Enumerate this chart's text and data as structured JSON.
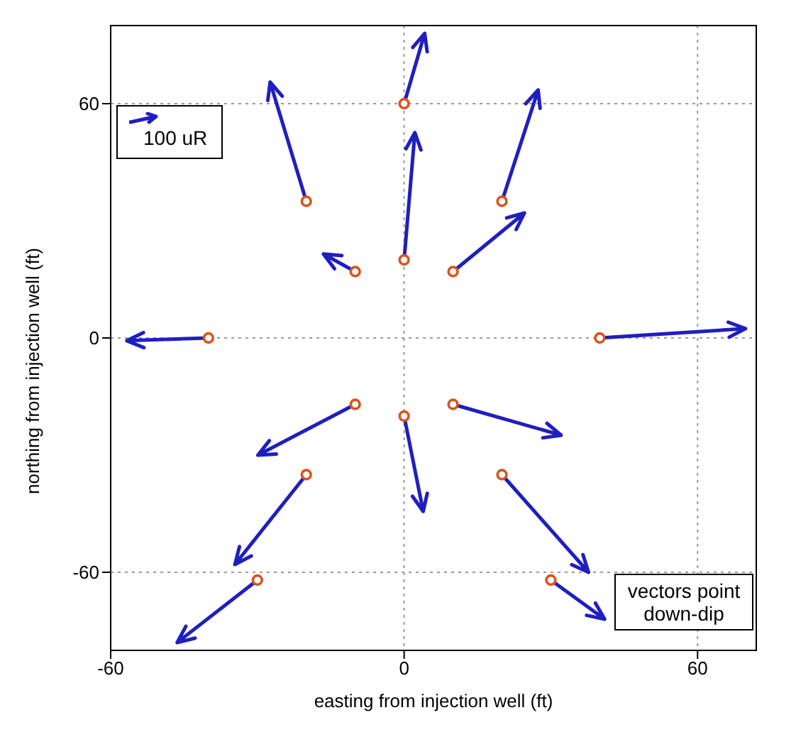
{
  "chart_data": {
    "type": "line",
    "xlabel": "easting from injection well (ft)",
    "ylabel": "northing from injection well (ft)",
    "xlim": [
      -60,
      72
    ],
    "ylim": [
      -80,
      80
    ],
    "xticks": [
      -60,
      0,
      60
    ],
    "yticks": [
      -60,
      0,
      60
    ],
    "grid": true,
    "line_style": "solid",
    "annotations": [
      "100 uR",
      "vectors point down-dip"
    ],
    "series": [
      {
        "color": "#1f1fbf",
        "marker": "none",
        "x": [
          0,
          4.2
        ],
        "values": [
          60,
          78
        ]
      },
      {
        "color": "#1f1fbf",
        "marker": "none",
        "x": [
          0,
          2.2
        ],
        "values": [
          20,
          52.6
        ]
      },
      {
        "color": "#1f1fbf",
        "marker": "none",
        "x": [
          -10,
          -16.5
        ],
        "values": [
          17,
          21.5
        ]
      },
      {
        "color": "#1f1fbf",
        "marker": "none",
        "x": [
          10,
          24.6
        ],
        "values": [
          17,
          32
        ]
      },
      {
        "color": "#1f1fbf",
        "marker": "none",
        "x": [
          -20,
          -27.4
        ],
        "values": [
          35,
          65.5
        ]
      },
      {
        "color": "#1f1fbf",
        "marker": "none",
        "x": [
          20,
          27.4
        ],
        "values": [
          35,
          63.5
        ]
      },
      {
        "color": "#1f1fbf",
        "marker": "none",
        "x": [
          -40,
          -56.7
        ],
        "values": [
          0,
          -0.7
        ]
      },
      {
        "color": "#1f1fbf",
        "marker": "none",
        "x": [
          40,
          69.8
        ],
        "values": [
          0,
          2.4
        ]
      },
      {
        "color": "#1f1fbf",
        "marker": "none",
        "x": [
          -10,
          -29.9
        ],
        "values": [
          -17,
          -30
        ]
      },
      {
        "color": "#1f1fbf",
        "marker": "none",
        "x": [
          10,
          32.1
        ],
        "values": [
          -17,
          -24.9
        ]
      },
      {
        "color": "#1f1fbf",
        "marker": "none",
        "x": [
          0,
          3.9
        ],
        "values": [
          -20,
          -44.4
        ]
      },
      {
        "color": "#1f1fbf",
        "marker": "none",
        "x": [
          -20,
          -34.6
        ],
        "values": [
          -35,
          -58
        ]
      },
      {
        "color": "#1f1fbf",
        "marker": "none",
        "x": [
          20,
          37.7
        ],
        "values": [
          -35,
          -60
        ]
      },
      {
        "color": "#1f1fbf",
        "marker": "none",
        "x": [
          -30,
          -46.4
        ],
        "values": [
          -62,
          -78
        ]
      },
      {
        "color": "#1f1fbf",
        "marker": "none",
        "x": [
          30,
          41
        ],
        "values": [
          -62,
          -72
        ]
      },
      {
        "type": "scatter",
        "color": "#d9541e",
        "marker": "circle",
        "x": [
          0,
          0,
          -10,
          10,
          -20,
          20,
          -40,
          40,
          -10,
          10,
          0,
          -20,
          20,
          -30,
          30
        ],
        "values": [
          60,
          20,
          17,
          17,
          35,
          35,
          0,
          0,
          -17,
          -17,
          -20,
          -35,
          -35,
          -62,
          -62
        ]
      }
    ]
  }
}
